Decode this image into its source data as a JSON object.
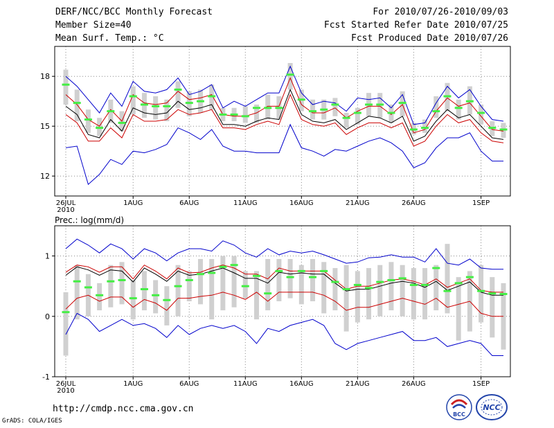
{
  "header": {
    "title": "DERF/NCC/BCC Monthly Forecast",
    "member_size": "Member Size=40",
    "variable": "Mean Surf. Temp.: °C",
    "period": "For 2010/07/26-2010/09/03",
    "fcst_start": "Fcst Started Refer Date 2010/07/25",
    "fcst_produced": "Fcst Produced Date 2010/07/26"
  },
  "precip_label": "Prec.: log(mm/d)",
  "url": "http://cmdp.ncc.cma.gov.cn",
  "credit": "GrADS: COLA/IGES",
  "logos": {
    "bcc": "BCC",
    "ncc": "NCC"
  },
  "colors": {
    "bar": "#d0d0d0",
    "median": "#44ee44",
    "max": "#0000cc",
    "mean": "#000000",
    "spread": "#cc0000"
  },
  "chart_data": [
    {
      "type": "line",
      "name": "temperature",
      "ylabel": "Mean Surf. Temp.: °C",
      "ylim": [
        10.8,
        19.8
      ],
      "yticks": [
        12,
        15,
        18
      ],
      "x_ticks": [
        {
          "day": 0,
          "label": "26JUL",
          "sub": "2010"
        },
        {
          "day": 6,
          "label": "1AUG"
        },
        {
          "day": 11,
          "label": "6AUG"
        },
        {
          "day": 16,
          "label": "11AUG"
        },
        {
          "day": 21,
          "label": "16AUG"
        },
        {
          "day": 26,
          "label": "21AUG"
        },
        {
          "day": 31,
          "label": "26AUG"
        },
        {
          "day": 37,
          "label": "1SEP"
        }
      ],
      "days": 40,
      "box_low": [
        16.3,
        15.3,
        14.6,
        14.4,
        15.2,
        14.7,
        15.7,
        15.5,
        15.4,
        15.3,
        16.1,
        15.6,
        15.8,
        16.0,
        15.3,
        15.3,
        15.2,
        15.2,
        15.4,
        15.4,
        17.2,
        15.9,
        15.4,
        15.4,
        15.6,
        14.9,
        15.1,
        15.6,
        15.5,
        15.2,
        15.6,
        14.5,
        14.6,
        15.5,
        15.9,
        15.4,
        15.7,
        15.1,
        14.4,
        14.3
      ],
      "box_high": [
        18.4,
        17.2,
        16.0,
        15.5,
        16.6,
        15.9,
        17.4,
        17.0,
        16.8,
        16.6,
        17.7,
        17.1,
        17.2,
        17.5,
        16.1,
        16.1,
        16.2,
        16.3,
        16.9,
        16.8,
        18.8,
        17.2,
        16.6,
        16.6,
        16.7,
        15.8,
        16.1,
        17.0,
        17.0,
        16.3,
        17.1,
        15.2,
        15.4,
        16.8,
        17.6,
        16.6,
        17.4,
        16.3,
        15.3,
        15.2
      ],
      "median": [
        17.5,
        16.4,
        15.4,
        14.9,
        15.9,
        15.2,
        16.8,
        16.3,
        16.2,
        16.2,
        17.2,
        16.4,
        16.5,
        16.8,
        15.7,
        15.7,
        15.6,
        16.1,
        16.1,
        16.1,
        18.1,
        16.6,
        15.9,
        16.0,
        16.3,
        15.5,
        15.8,
        16.3,
        16.3,
        15.8,
        16.4,
        14.8,
        14.9,
        15.9,
        16.8,
        16.1,
        16.5,
        15.8,
        14.9,
        14.8
      ],
      "max": [
        18.0,
        17.4,
        16.6,
        15.8,
        17.0,
        16.2,
        17.7,
        17.1,
        17.0,
        17.2,
        17.9,
        16.9,
        17.1,
        17.5,
        16.1,
        16.5,
        16.2,
        16.6,
        17.0,
        17.0,
        18.6,
        17.0,
        16.3,
        16.5,
        16.4,
        15.9,
        16.7,
        16.6,
        16.7,
        16.1,
        16.9,
        15.1,
        15.2,
        16.4,
        17.4,
        16.7,
        17.2,
        16.2,
        15.4,
        15.3
      ],
      "spread_high": [
        16.9,
        16.3,
        15.4,
        15.0,
        16.0,
        15.3,
        16.9,
        16.4,
        16.3,
        16.4,
        17.1,
        16.6,
        16.7,
        16.9,
        15.7,
        15.6,
        15.6,
        15.8,
        16.2,
        16.2,
        17.9,
        16.3,
        15.8,
        15.8,
        16.1,
        15.5,
        15.9,
        16.2,
        16.2,
        15.7,
        16.3,
        14.6,
        14.8,
        15.9,
        16.7,
        16.2,
        16.4,
        15.6,
        14.8,
        14.7
      ],
      "mean": [
        16.2,
        15.7,
        14.5,
        14.3,
        15.4,
        14.7,
        16.1,
        15.8,
        15.7,
        15.8,
        16.5,
        16.0,
        16.1,
        16.3,
        15.1,
        15.1,
        15.0,
        15.3,
        15.5,
        15.4,
        17.2,
        15.7,
        15.3,
        15.2,
        15.4,
        14.8,
        15.2,
        15.6,
        15.5,
        15.2,
        15.6,
        14.1,
        14.4,
        15.3,
        16.0,
        15.5,
        15.7,
        15.0,
        14.3,
        14.2
      ],
      "spread_low": [
        15.7,
        15.2,
        14.1,
        14.1,
        14.9,
        14.3,
        15.7,
        15.3,
        15.3,
        15.4,
        16.0,
        15.7,
        15.8,
        16.0,
        14.9,
        14.9,
        14.8,
        15.1,
        15.3,
        15.1,
        16.9,
        15.4,
        15.1,
        15.0,
        15.2,
        14.5,
        14.9,
        15.2,
        15.2,
        14.9,
        15.2,
        13.8,
        14.1,
        15.0,
        15.7,
        15.2,
        15.4,
        14.6,
        14.1,
        14.0
      ],
      "min": [
        13.7,
        13.8,
        11.5,
        12.1,
        13.0,
        12.7,
        13.5,
        13.4,
        13.6,
        13.9,
        14.9,
        14.6,
        14.2,
        14.8,
        13.8,
        13.5,
        13.5,
        13.4,
        13.4,
        13.4,
        15.1,
        13.7,
        13.5,
        13.2,
        13.6,
        13.5,
        13.8,
        14.1,
        14.3,
        14.0,
        13.5,
        12.5,
        12.8,
        13.7,
        14.3,
        14.3,
        14.6,
        13.5,
        12.9,
        12.9
      ]
    },
    {
      "type": "line",
      "name": "precipitation",
      "ylabel": "Prec.: log(mm/d)",
      "ylim": [
        -1,
        1.5
      ],
      "yticks": [
        -1,
        0,
        1
      ],
      "x_ticks": [
        {
          "day": 0,
          "label": "26JUL",
          "sub": "2010"
        },
        {
          "day": 6,
          "label": "1AUG"
        },
        {
          "day": 11,
          "label": "6AUG"
        },
        {
          "day": 16,
          "label": "11AUG"
        },
        {
          "day": 21,
          "label": "16AUG"
        },
        {
          "day": 26,
          "label": "21AUG"
        },
        {
          "day": 31,
          "label": "26AUG"
        },
        {
          "day": 37,
          "label": "1SEP"
        }
      ],
      "days": 40,
      "box_low": [
        -0.65,
        -0.05,
        0.0,
        0.1,
        0.15,
        0.2,
        -0.05,
        0.1,
        0.05,
        -0.15,
        0.0,
        0.25,
        0.2,
        -0.05,
        0.1,
        0.15,
        0.3,
        -0.05,
        0.1,
        0.25,
        0.3,
        0.2,
        0.25,
        0.05,
        0.1,
        -0.25,
        -0.1,
        -0.05,
        0.0,
        0.1,
        0.0,
        -0.05,
        -0.05,
        0.1,
        0.05,
        -0.4,
        -0.25,
        -0.1,
        -0.35,
        -0.55
      ],
      "box_high": [
        0.4,
        0.85,
        0.7,
        0.55,
        0.85,
        0.9,
        0.6,
        0.75,
        0.6,
        0.5,
        0.85,
        0.75,
        0.95,
        0.95,
        1.0,
        1.0,
        0.75,
        0.75,
        0.95,
        0.95,
        0.95,
        0.85,
        0.95,
        0.9,
        0.8,
        0.85,
        0.75,
        0.8,
        0.85,
        0.9,
        0.85,
        0.8,
        0.8,
        0.85,
        1.2,
        0.65,
        0.75,
        0.85,
        0.65,
        0.55
      ],
      "median": [
        0.07,
        0.58,
        0.48,
        0.35,
        0.58,
        0.6,
        0.3,
        0.45,
        0.35,
        0.27,
        0.5,
        0.6,
        0.7,
        0.72,
        0.82,
        0.85,
        0.5,
        0.67,
        0.38,
        0.75,
        0.65,
        0.75,
        0.65,
        0.75,
        0.57,
        0.45,
        0.52,
        0.47,
        0.57,
        0.6,
        0.63,
        0.52,
        0.52,
        0.8,
        0.42,
        0.55,
        0.65,
        0.42,
        0.38,
        0.37
      ],
      "max": [
        1.12,
        1.28,
        1.18,
        1.05,
        1.2,
        1.12,
        0.95,
        1.12,
        1.05,
        0.92,
        1.05,
        1.12,
        1.12,
        1.08,
        1.25,
        1.18,
        1.05,
        0.98,
        1.12,
        1.02,
        1.08,
        1.05,
        1.08,
        1.02,
        0.95,
        0.88,
        0.9,
        0.97,
        0.98,
        1.02,
        0.98,
        0.98,
        0.9,
        1.12,
        0.88,
        0.85,
        0.95,
        0.8,
        0.78,
        0.78
      ],
      "spread_high": [
        0.73,
        0.85,
        0.82,
        0.73,
        0.82,
        0.82,
        0.62,
        0.85,
        0.75,
        0.62,
        0.8,
        0.72,
        0.73,
        0.8,
        0.85,
        0.8,
        0.7,
        0.7,
        0.62,
        0.8,
        0.75,
        0.75,
        0.75,
        0.75,
        0.6,
        0.45,
        0.5,
        0.5,
        0.55,
        0.6,
        0.62,
        0.58,
        0.52,
        0.62,
        0.48,
        0.55,
        0.62,
        0.43,
        0.4,
        0.4
      ],
      "mean": [
        0.68,
        0.82,
        0.77,
        0.68,
        0.77,
        0.75,
        0.57,
        0.8,
        0.7,
        0.58,
        0.75,
        0.68,
        0.7,
        0.75,
        0.8,
        0.72,
        0.63,
        0.63,
        0.55,
        0.73,
        0.7,
        0.72,
        0.7,
        0.7,
        0.55,
        0.42,
        0.45,
        0.45,
        0.5,
        0.55,
        0.58,
        0.55,
        0.48,
        0.58,
        0.43,
        0.5,
        0.57,
        0.4,
        0.35,
        0.35
      ],
      "spread_low": [
        0.12,
        0.3,
        0.35,
        0.25,
        0.32,
        0.32,
        0.15,
        0.28,
        0.22,
        0.1,
        0.3,
        0.3,
        0.33,
        0.35,
        0.4,
        0.35,
        0.28,
        0.4,
        0.25,
        0.4,
        0.4,
        0.4,
        0.4,
        0.35,
        0.25,
        0.1,
        0.15,
        0.15,
        0.2,
        0.25,
        0.3,
        0.25,
        0.2,
        0.3,
        0.15,
        0.2,
        0.25,
        0.05,
        0.0,
        0.0
      ],
      "min": [
        -0.3,
        0.05,
        -0.05,
        -0.25,
        -0.15,
        -0.05,
        -0.15,
        -0.12,
        -0.2,
        -0.35,
        -0.15,
        -0.3,
        -0.2,
        -0.15,
        -0.2,
        -0.15,
        -0.25,
        -0.45,
        -0.2,
        -0.25,
        -0.15,
        -0.1,
        -0.05,
        -0.15,
        -0.45,
        -0.55,
        -0.45,
        -0.4,
        -0.35,
        -0.3,
        -0.25,
        -0.4,
        -0.4,
        -0.35,
        -0.5,
        -0.45,
        -0.4,
        -0.45,
        -0.65,
        -0.65
      ]
    }
  ]
}
